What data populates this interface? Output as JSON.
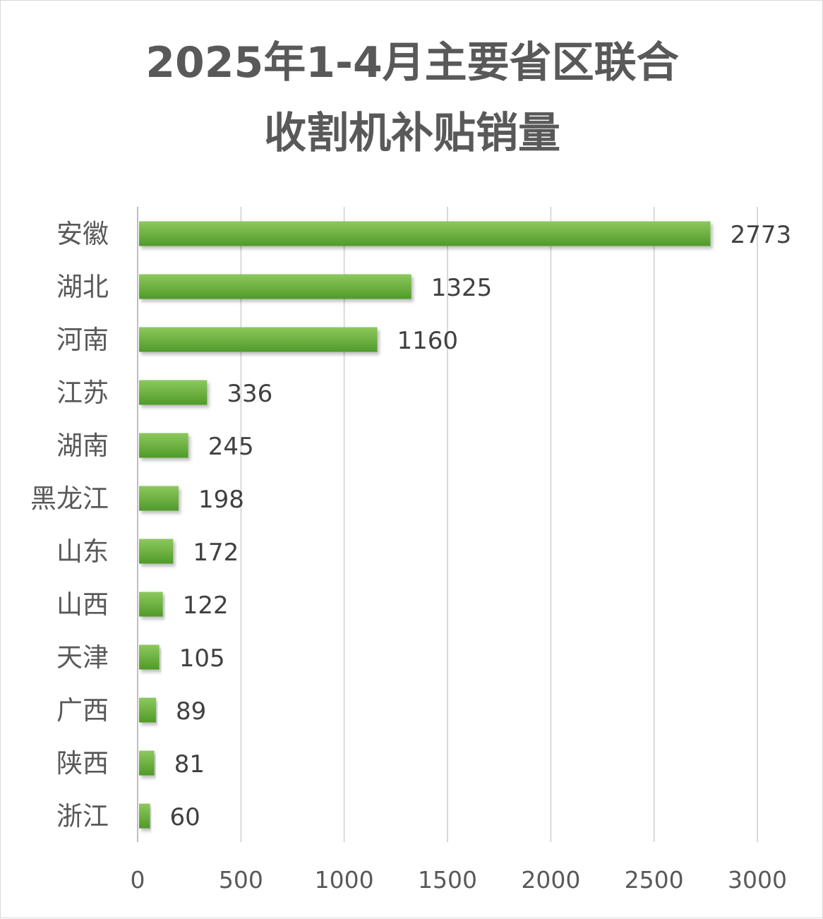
{
  "chart_data": {
    "type": "bar",
    "orientation": "horizontal",
    "title_lines": [
      "2025年1-4月主要省区联合",
      "收割机补贴销量"
    ],
    "categories": [
      "安徽",
      "湖北",
      "河南",
      "江苏",
      "湖南",
      "黑龙江",
      "山东",
      "山西",
      "天津",
      "广西",
      "陕西",
      "浙江"
    ],
    "values": [
      2773,
      1325,
      1160,
      336,
      245,
      198,
      172,
      122,
      105,
      89,
      81,
      60
    ],
    "xlim": [
      0,
      3000
    ],
    "xticks": [
      0,
      500,
      1000,
      1500,
      2000,
      2500,
      3000
    ],
    "xlabel": "",
    "ylabel": "",
    "grid": "vertical",
    "legend": "none",
    "bar_color": "#70b244"
  }
}
